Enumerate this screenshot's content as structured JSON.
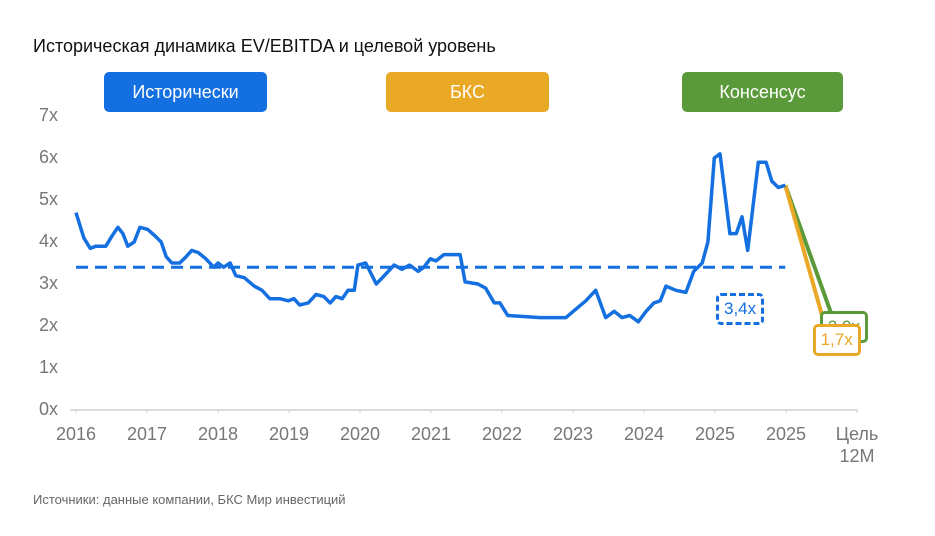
{
  "title": "Историческая динамика EV/EBITDA и целевой уровень",
  "source": "Источники: данные компании, БКС Мир инвестиций",
  "chart_data": {
    "type": "line",
    "xlim": [
      0,
      11
    ],
    "ylim": [
      0,
      7
    ],
    "xticks": [
      {
        "value": 0,
        "label": "2016"
      },
      {
        "value": 1,
        "label": "2017"
      },
      {
        "value": 2,
        "label": "2018"
      },
      {
        "value": 3,
        "label": "2019"
      },
      {
        "value": 4,
        "label": "2020"
      },
      {
        "value": 5,
        "label": "2021"
      },
      {
        "value": 6,
        "label": "2022"
      },
      {
        "value": 7,
        "label": "2023"
      },
      {
        "value": 8,
        "label": "2024"
      },
      {
        "value": 9,
        "label": "2025"
      },
      {
        "value": 10,
        "label": "2025"
      },
      {
        "value": 11,
        "label": "Цель 12M"
      }
    ],
    "yticks": [
      {
        "value": 0,
        "label": "0x"
      },
      {
        "value": 1,
        "label": "1x"
      },
      {
        "value": 2,
        "label": "2x"
      },
      {
        "value": 3,
        "label": "3x"
      },
      {
        "value": 4,
        "label": "4x"
      },
      {
        "value": 5,
        "label": "5x"
      },
      {
        "value": 6,
        "label": "6x"
      },
      {
        "value": 7,
        "label": "7x"
      }
    ],
    "average": {
      "value": 3.4,
      "label": "3,4x",
      "color": "#1470e0"
    },
    "series": [
      {
        "name": "Исторически",
        "color": "#1470e0",
        "x": [
          0,
          0.11,
          0.2,
          0.28,
          0.42,
          0.51,
          0.59,
          0.66,
          0.73,
          0.82,
          0.9,
          1.01,
          1.11,
          1.2,
          1.27,
          1.35,
          1.46,
          1.55,
          1.63,
          1.72,
          1.83,
          1.94,
          2.0,
          2.08,
          2.17,
          2.25,
          2.37,
          2.51,
          2.62,
          2.73,
          2.87,
          2.99,
          3.07,
          3.15,
          3.27,
          3.38,
          3.49,
          3.58,
          3.66,
          3.75,
          3.83,
          3.92,
          3.97,
          4.08,
          4.23,
          4.37,
          4.48,
          4.59,
          4.7,
          4.82,
          4.9,
          4.99,
          5.07,
          5.18,
          5.3,
          5.41,
          5.48,
          5.66,
          5.77,
          5.89,
          5.97,
          6.08,
          6.54,
          6.9,
          7.04,
          7.18,
          7.32,
          7.46,
          7.58,
          7.69,
          7.8,
          7.92,
          8.03,
          8.14,
          8.23,
          8.31,
          8.45,
          8.59,
          8.7,
          8.82,
          8.9,
          8.99,
          9.07,
          9.21,
          9.3,
          9.38,
          9.46,
          9.61,
          9.72,
          9.8,
          9.89,
          9.99
        ],
        "values": [
          4.7,
          4.1,
          3.85,
          3.9,
          3.9,
          4.15,
          4.35,
          4.2,
          3.9,
          4.0,
          4.35,
          4.3,
          4.15,
          4.0,
          3.65,
          3.5,
          3.5,
          3.65,
          3.8,
          3.75,
          3.6,
          3.4,
          3.5,
          3.4,
          3.5,
          3.2,
          3.15,
          2.95,
          2.85,
          2.65,
          2.65,
          2.6,
          2.65,
          2.5,
          2.55,
          2.75,
          2.7,
          2.55,
          2.7,
          2.65,
          2.85,
          2.85,
          3.45,
          3.5,
          3.0,
          3.25,
          3.45,
          3.35,
          3.45,
          3.3,
          3.4,
          3.6,
          3.55,
          3.7,
          3.7,
          3.7,
          3.05,
          3.0,
          2.9,
          2.55,
          2.55,
          2.25,
          2.2,
          2.2,
          2.4,
          2.6,
          2.85,
          2.2,
          2.35,
          2.2,
          2.25,
          2.1,
          2.35,
          2.55,
          2.6,
          2.95,
          2.85,
          2.8,
          3.3,
          3.5,
          4.0,
          6.0,
          6.1,
          4.2,
          4.2,
          4.6,
          3.8,
          5.9,
          5.9,
          5.45,
          5.3,
          5.35
        ]
      },
      {
        "name": "БКС",
        "color": "#e9a825",
        "x": [
          9.99,
          10.6
        ],
        "values": [
          5.35,
          1.7
        ],
        "value_labels": [
          null,
          "1,7x"
        ]
      },
      {
        "name": "Консенсус",
        "color": "#5b9a3b",
        "x": [
          9.99,
          10.7
        ],
        "values": [
          5.35,
          2.0
        ],
        "value_labels": [
          null,
          "2,0x"
        ]
      }
    ]
  }
}
